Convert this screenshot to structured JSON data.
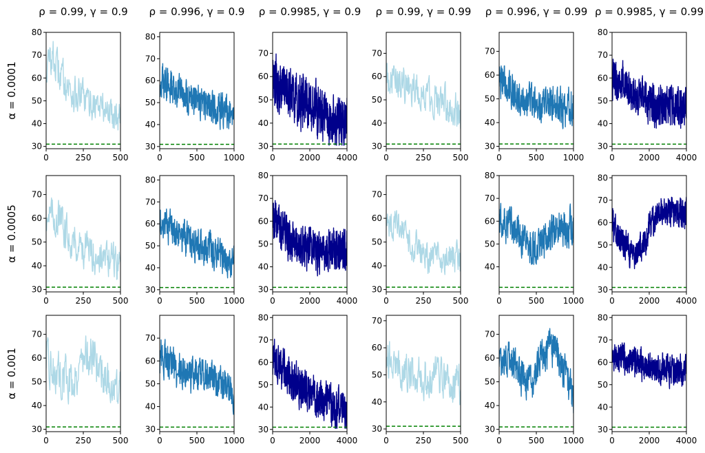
{
  "chart_data": {
    "type": "line",
    "grid": false,
    "column_titles": [
      "ρ = 0.99, γ = 0.9",
      "ρ = 0.996, γ = 0.9",
      "ρ = 0.9985, γ = 0.9",
      "ρ = 0.99, γ = 0.99",
      "ρ = 0.996, γ = 0.99",
      "ρ = 0.9985, γ = 0.99"
    ],
    "row_labels": [
      "α = 0.0001",
      "α = 0.0005",
      "α = 0.001"
    ],
    "reference_line": {
      "y": 31,
      "style": "dashed",
      "color": "#008000"
    },
    "colors": {
      "light": "#add8e6",
      "medium": "#1f77b4",
      "dark": "#00008b"
    },
    "panels": [
      [
        {
          "color": "light",
          "xlim": [
            0,
            500
          ],
          "xticks": [
            0,
            250,
            500
          ],
          "ylim": [
            29,
            80
          ],
          "yticks": [
            30,
            40,
            50,
            60,
            70,
            80
          ],
          "points": [
            [
              0,
              64
            ],
            [
              40,
              70
            ],
            [
              80,
              63
            ],
            [
              120,
              60
            ],
            [
              160,
              55
            ],
            [
              200,
              52
            ],
            [
              240,
              52
            ],
            [
              280,
              49
            ],
            [
              320,
              49
            ],
            [
              360,
              48
            ],
            [
              400,
              46
            ],
            [
              440,
              45
            ],
            [
              500,
              45
            ]
          ],
          "noise": 7
        },
        {
          "color": "medium",
          "xlim": [
            0,
            1000
          ],
          "xticks": [
            0,
            500,
            1000
          ],
          "ylim": [
            29,
            82
          ],
          "yticks": [
            30,
            40,
            50,
            60,
            70,
            80
          ],
          "points": [
            [
              0,
              60
            ],
            [
              150,
              57
            ],
            [
              300,
              54
            ],
            [
              450,
              52
            ],
            [
              600,
              49
            ],
            [
              750,
              47
            ],
            [
              900,
              46
            ],
            [
              1000,
              46
            ]
          ],
          "noise": 7
        },
        {
          "color": "dark",
          "xlim": [
            0,
            4000
          ],
          "xticks": [
            0,
            2000,
            4000
          ],
          "ylim": [
            29,
            79
          ],
          "yticks": [
            30,
            40,
            50,
            60,
            70
          ],
          "points": [
            [
              0,
              58
            ],
            [
              500,
              55
            ],
            [
              1000,
              52
            ],
            [
              1500,
              50
            ],
            [
              2000,
              48
            ],
            [
              2500,
              45
            ],
            [
              3000,
              42
            ],
            [
              3500,
              40
            ],
            [
              4000,
              40
            ]
          ],
          "noise": 10
        },
        {
          "color": "light",
          "xlim": [
            0,
            500
          ],
          "xticks": [
            0,
            250,
            500
          ],
          "ylim": [
            29,
            79
          ],
          "yticks": [
            30,
            40,
            50,
            60,
            70
          ],
          "points": [
            [
              0,
              60
            ],
            [
              80,
              58
            ],
            [
              160,
              55
            ],
            [
              240,
              53
            ],
            [
              320,
              51
            ],
            [
              400,
              48
            ],
            [
              460,
              46
            ],
            [
              500,
              43
            ]
          ],
          "noise": 7
        },
        {
          "color": "medium",
          "xlim": [
            0,
            1000
          ],
          "xticks": [
            0,
            500,
            1000
          ],
          "ylim": [
            29,
            78
          ],
          "yticks": [
            30,
            40,
            50,
            60,
            70
          ],
          "points": [
            [
              0,
              58
            ],
            [
              150,
              54
            ],
            [
              300,
              51
            ],
            [
              450,
              49
            ],
            [
              600,
              48
            ],
            [
              750,
              47
            ],
            [
              900,
              46
            ],
            [
              1000,
              46
            ]
          ],
          "noise": 7
        },
        {
          "color": "dark",
          "xlim": [
            0,
            4000
          ],
          "xticks": [
            0,
            2000,
            4000
          ],
          "ylim": [
            29,
            80
          ],
          "yticks": [
            30,
            40,
            50,
            60,
            70,
            80
          ],
          "points": [
            [
              0,
              60
            ],
            [
              600,
              57
            ],
            [
              1200,
              53
            ],
            [
              1800,
              50
            ],
            [
              2400,
              48
            ],
            [
              3000,
              48
            ],
            [
              3600,
              47
            ],
            [
              4000,
              47
            ]
          ],
          "noise": 8
        }
      ],
      [
        {
          "color": "light",
          "xlim": [
            0,
            500
          ],
          "xticks": [
            0,
            250,
            500
          ],
          "ylim": [
            29,
            78
          ],
          "yticks": [
            30,
            40,
            50,
            60,
            70
          ],
          "points": [
            [
              0,
              62
            ],
            [
              80,
              60
            ],
            [
              160,
              52
            ],
            [
              240,
              48
            ],
            [
              320,
              45
            ],
            [
              400,
              43
            ],
            [
              460,
              42
            ],
            [
              500,
              41
            ]
          ],
          "noise": 7
        },
        {
          "color": "medium",
          "xlim": [
            0,
            1000
          ],
          "xticks": [
            0,
            500,
            1000
          ],
          "ylim": [
            29,
            82
          ],
          "yticks": [
            30,
            40,
            50,
            60,
            70,
            80
          ],
          "points": [
            [
              0,
              63
            ],
            [
              150,
              58
            ],
            [
              300,
              54
            ],
            [
              450,
              51
            ],
            [
              600,
              49
            ],
            [
              750,
              47
            ],
            [
              900,
              44
            ],
            [
              1000,
              43
            ]
          ],
          "noise": 7
        },
        {
          "color": "dark",
          "xlim": [
            0,
            4000
          ],
          "xticks": [
            0,
            2000,
            4000
          ],
          "ylim": [
            29,
            80
          ],
          "yticks": [
            30,
            40,
            50,
            60,
            70,
            80
          ],
          "points": [
            [
              0,
              62
            ],
            [
              500,
              56
            ],
            [
              1000,
              50
            ],
            [
              1500,
              47
            ],
            [
              2000,
              50
            ],
            [
              2500,
              46
            ],
            [
              3000,
              48
            ],
            [
              3500,
              47
            ],
            [
              4000,
              47
            ]
          ],
          "noise": 8
        },
        {
          "color": "light",
          "xlim": [
            0,
            500
          ],
          "xticks": [
            0,
            250,
            500
          ],
          "ylim": [
            29,
            78
          ],
          "yticks": [
            30,
            40,
            50,
            60,
            70
          ],
          "points": [
            [
              0,
              60
            ],
            [
              80,
              55
            ],
            [
              160,
              50
            ],
            [
              240,
              45
            ],
            [
              320,
              42
            ],
            [
              400,
              42
            ],
            [
              460,
              43
            ],
            [
              500,
              42
            ]
          ],
          "noise": 6
        },
        {
          "color": "medium",
          "xlim": [
            0,
            1000
          ],
          "xticks": [
            0,
            500,
            1000
          ],
          "ylim": [
            29,
            80
          ],
          "yticks": [
            40,
            50,
            60,
            70,
            80
          ],
          "points": [
            [
              0,
              60
            ],
            [
              150,
              58
            ],
            [
              300,
              52
            ],
            [
              450,
              48
            ],
            [
              600,
              52
            ],
            [
              700,
              55
            ],
            [
              800,
              58
            ],
            [
              900,
              57
            ],
            [
              1000,
              58
            ]
          ],
          "noise": 7
        },
        {
          "color": "dark",
          "xlim": [
            0,
            4000
          ],
          "xticks": [
            0,
            2000,
            4000
          ],
          "ylim": [
            29,
            81
          ],
          "yticks": [
            30,
            40,
            50,
            60,
            70,
            80
          ],
          "points": [
            [
              0,
              60
            ],
            [
              500,
              52
            ],
            [
              1000,
              47
            ],
            [
              1500,
              47
            ],
            [
              2000,
              57
            ],
            [
              2500,
              64
            ],
            [
              3000,
              66
            ],
            [
              3500,
              64
            ],
            [
              4000,
              63
            ]
          ],
          "noise": 6
        }
      ],
      [
        {
          "color": "light",
          "xlim": [
            0,
            500
          ],
          "xticks": [
            0,
            250,
            500
          ],
          "ylim": [
            29,
            78
          ],
          "yticks": [
            30,
            40,
            50,
            60,
            70
          ],
          "points": [
            [
              0,
              58
            ],
            [
              60,
              54
            ],
            [
              120,
              52
            ],
            [
              180,
              50
            ],
            [
              240,
              60
            ],
            [
              300,
              62
            ],
            [
              360,
              56
            ],
            [
              420,
              50
            ],
            [
              480,
              45
            ],
            [
              500,
              44
            ]
          ],
          "noise": 8
        },
        {
          "color": "medium",
          "xlim": [
            0,
            1000
          ],
          "xticks": [
            0,
            500,
            1000
          ],
          "ylim": [
            29,
            80
          ],
          "yticks": [
            30,
            40,
            50,
            60,
            70
          ],
          "points": [
            [
              0,
              62
            ],
            [
              150,
              58
            ],
            [
              300,
              55
            ],
            [
              450,
              54
            ],
            [
              600,
              54
            ],
            [
              750,
              52
            ],
            [
              900,
              49
            ],
            [
              1000,
              45
            ]
          ],
          "noise": 7
        },
        {
          "color": "dark",
          "xlim": [
            0,
            4000
          ],
          "xticks": [
            0,
            2000,
            4000
          ],
          "ylim": [
            29,
            81
          ],
          "yticks": [
            30,
            40,
            50,
            60,
            70,
            80
          ],
          "points": [
            [
              0,
              60
            ],
            [
              500,
              57
            ],
            [
              1000,
              53
            ],
            [
              1500,
              49
            ],
            [
              2000,
              46
            ],
            [
              2500,
              43
            ],
            [
              3000,
              41
            ],
            [
              3500,
              39
            ],
            [
              4000,
              38
            ]
          ],
          "noise": 8
        },
        {
          "color": "light",
          "xlim": [
            0,
            500
          ],
          "xticks": [
            0,
            250,
            500
          ],
          "ylim": [
            29,
            72
          ],
          "yticks": [
            30,
            40,
            50,
            60,
            70
          ],
          "points": [
            [
              0,
              55
            ],
            [
              80,
              52
            ],
            [
              160,
              50
            ],
            [
              240,
              50
            ],
            [
              320,
              49
            ],
            [
              400,
              48
            ],
            [
              460,
              47
            ],
            [
              500,
              46
            ]
          ],
          "noise": 7
        },
        {
          "color": "medium",
          "xlim": [
            0,
            1000
          ],
          "xticks": [
            0,
            500,
            1000
          ],
          "ylim": [
            29,
            78
          ],
          "yticks": [
            30,
            40,
            50,
            60,
            70
          ],
          "points": [
            [
              0,
              58
            ],
            [
              150,
              58
            ],
            [
              300,
              52
            ],
            [
              450,
              50
            ],
            [
              550,
              60
            ],
            [
              650,
              64
            ],
            [
              750,
              64
            ],
            [
              850,
              55
            ],
            [
              950,
              48
            ],
            [
              1000,
              42
            ]
          ],
          "noise": 7
        },
        {
          "color": "dark",
          "xlim": [
            0,
            4000
          ],
          "xticks": [
            0,
            2000,
            4000
          ],
          "ylim": [
            29,
            81
          ],
          "yticks": [
            30,
            40,
            50,
            60,
            70,
            80
          ],
          "points": [
            [
              0,
              63
            ],
            [
              600,
              62
            ],
            [
              1200,
              60
            ],
            [
              1800,
              58
            ],
            [
              2400,
              57
            ],
            [
              3000,
              57
            ],
            [
              3600,
              56
            ],
            [
              4000,
              56
            ]
          ],
          "noise": 6
        }
      ]
    ]
  }
}
